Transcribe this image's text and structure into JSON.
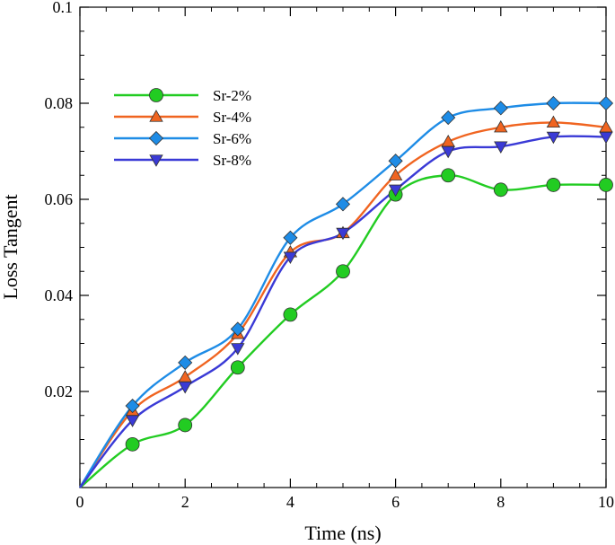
{
  "chart_data": {
    "type": "line",
    "title": "",
    "xlabel": "Time (ns)",
    "ylabel": "Loss Tangent",
    "xlim": [
      0,
      10
    ],
    "ylim": [
      0,
      0.1
    ],
    "x_ticks": [
      0,
      2,
      4,
      6,
      8,
      10
    ],
    "x_tick_labels": [
      "0",
      "2",
      "4",
      "6",
      "8",
      "10"
    ],
    "y_ticks": [
      0.02,
      0.04,
      0.06,
      0.08,
      0.1
    ],
    "y_tick_labels": [
      "0.02",
      "0.04",
      "0.06",
      "0.08",
      "0.1"
    ],
    "legend_position": "upper-left",
    "grid": false,
    "series": [
      {
        "name": "Sr-2%",
        "color": "#22cc22",
        "marker": "circle",
        "x": [
          0,
          1,
          2,
          3,
          4,
          5,
          6,
          7,
          8,
          9,
          10
        ],
        "values": [
          0,
          0.009,
          0.013,
          0.025,
          0.036,
          0.045,
          0.061,
          0.065,
          0.062,
          0.063,
          0.063
        ]
      },
      {
        "name": "Sr-4%",
        "color": "#f06420",
        "marker": "triangle-up",
        "x": [
          0,
          1,
          2,
          3,
          4,
          5,
          6,
          7,
          8,
          9,
          10
        ],
        "values": [
          0,
          0.016,
          0.023,
          0.032,
          0.049,
          0.053,
          0.065,
          0.072,
          0.075,
          0.076,
          0.075
        ]
      },
      {
        "name": "Sr-6%",
        "color": "#1e8ce6",
        "marker": "diamond",
        "x": [
          0,
          1,
          2,
          3,
          4,
          5,
          6,
          7,
          8,
          9,
          10
        ],
        "values": [
          0,
          0.017,
          0.026,
          0.033,
          0.052,
          0.059,
          0.068,
          0.077,
          0.079,
          0.08,
          0.08
        ]
      },
      {
        "name": "Sr-8%",
        "color": "#3a3ad6",
        "marker": "triangle-down",
        "x": [
          0,
          1,
          2,
          3,
          4,
          5,
          6,
          7,
          8,
          9,
          10
        ],
        "values": [
          0,
          0.014,
          0.021,
          0.029,
          0.048,
          0.053,
          0.062,
          0.07,
          0.071,
          0.073,
          0.073
        ]
      }
    ]
  }
}
